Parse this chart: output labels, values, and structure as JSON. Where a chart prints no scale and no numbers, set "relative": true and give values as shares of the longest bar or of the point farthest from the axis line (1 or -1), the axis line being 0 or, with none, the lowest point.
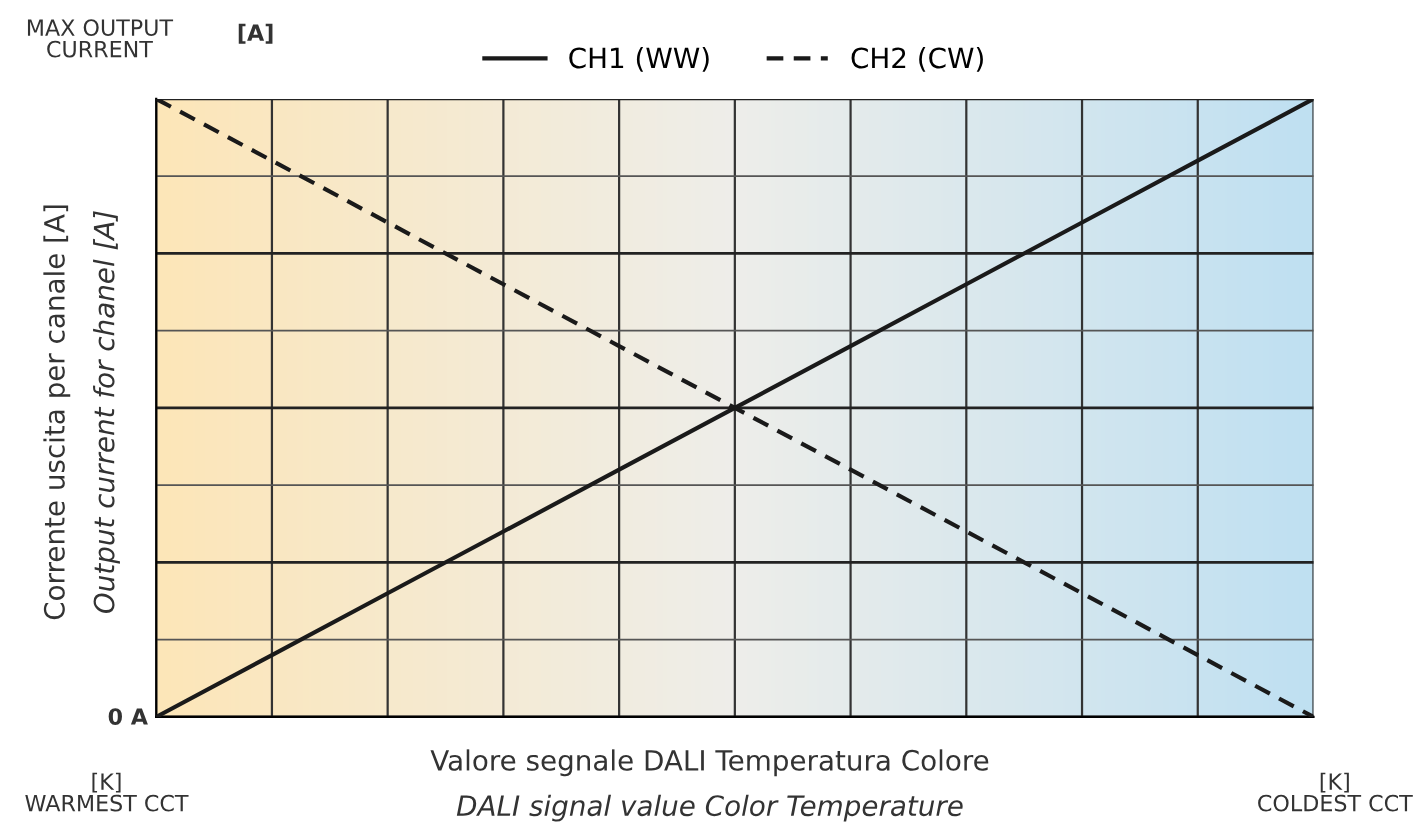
{
  "chart_data": {
    "type": "line",
    "relative": true,
    "categories": [
      null,
      null,
      null,
      null,
      null,
      null,
      null,
      null,
      null,
      null,
      null
    ],
    "series": [
      {
        "name": "CH1 (WW)",
        "color": "#1a1a1a",
        "line_style": "solid",
        "values": [
          0,
          0.1,
          0.2,
          0.3,
          0.4,
          0.5,
          0.6,
          0.7,
          0.8,
          0.9,
          1
        ]
      },
      {
        "name": "CH2 (CW)",
        "color": "#1a1a1a",
        "line_style": "dashed",
        "values": [
          1,
          0.9,
          0.8,
          0.7,
          0.6,
          0.5,
          0.4,
          0.3,
          0.2,
          0.1,
          0
        ]
      }
    ],
    "xlabel": "Valore segnale DALI Temperatura Colore\nDALI signal value Color Temperature",
    "ylabel": "Corrente uscita per canale [A]\nOutput current for chanel [A]",
    "annotations": [
      "MAX OUTPUT\nCURRENT",
      "[A]",
      "0 A",
      "[K]\nWARMEST CCT",
      "[K]\nCOLDEST CCT"
    ],
    "grid": true,
    "legend": "top",
    "marker": "none"
  }
}
